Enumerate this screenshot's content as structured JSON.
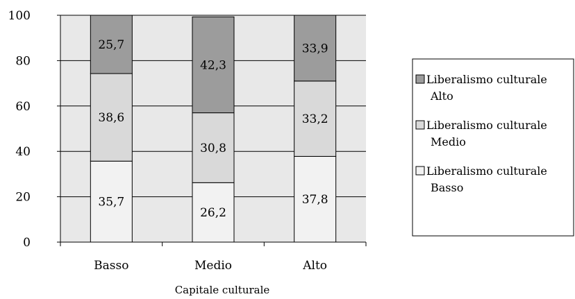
{
  "chart_data": {
    "type": "bar",
    "stacked": true,
    "title": "",
    "xlabel": "Capitale culturale",
    "ylabel": "",
    "categories": [
      "Basso",
      "Medio",
      "Alto"
    ],
    "ylim": [
      0,
      100
    ],
    "yticks": [
      0,
      20,
      40,
      60,
      80,
      100
    ],
    "grid": true,
    "legend_position": "right",
    "series": [
      {
        "name": "Liberalismo culturale Basso",
        "legend_lines": [
          "Liberalismo culturale",
          "Basso"
        ],
        "values": [
          35.7,
          26.2,
          37.8
        ],
        "labels": [
          "35,7",
          "26,2",
          "37,8"
        ],
        "color": "#f2f2f2"
      },
      {
        "name": "Liberalismo culturale Medio",
        "legend_lines": [
          "Liberalismo culturale",
          "Medio"
        ],
        "values": [
          38.6,
          30.8,
          33.2
        ],
        "labels": [
          "38,6",
          "30,8",
          "33,2"
        ],
        "color": "#d9d9d9"
      },
      {
        "name": "Liberalismo culturale Alto",
        "legend_lines": [
          "Liberalismo culturale",
          "Alto"
        ],
        "values": [
          25.7,
          42.3,
          33.9
        ],
        "labels": [
          "25,7",
          "42,3",
          "33,9"
        ],
        "color": "#9c9c9c"
      }
    ],
    "plot_background": "#e8e8e8"
  }
}
